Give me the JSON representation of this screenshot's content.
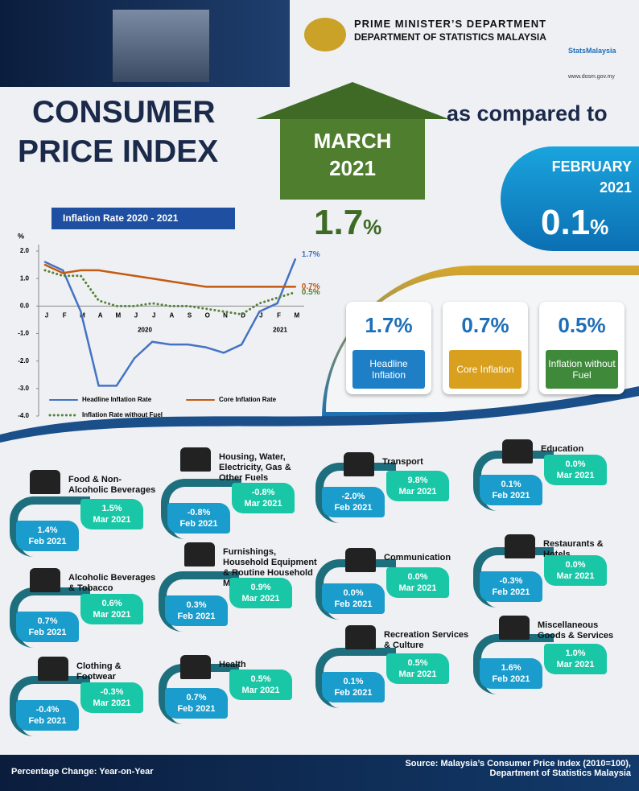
{
  "header": {
    "dept1": "PRIME MINISTER’S DEPARTMENT",
    "dept2": "DEPARTMENT OF STATISTICS MALAYSIA",
    "brand": "StatsMalaysia",
    "url": "www.dosm.gov.my",
    "title1": "CONSUMER",
    "title2": "PRICE INDEX",
    "compared": "as compared to"
  },
  "current": {
    "month": "MARCH",
    "year": "2021",
    "value": "1.7",
    "unit": "%"
  },
  "previous": {
    "month": "FEBRUARY",
    "year": "2021",
    "value": "0.1",
    "unit": "%"
  },
  "summary": [
    {
      "value": "1.7%",
      "label": "Headline Inflation"
    },
    {
      "value": "0.7%",
      "label": "Core Inflation"
    },
    {
      "value": "0.5%",
      "label": "Inflation without Fuel"
    }
  ],
  "chart_data": {
    "type": "line",
    "title": "Inflation Rate 2020 - 2021",
    "y_label": "%",
    "categories": [
      "J",
      "F",
      "M",
      "A",
      "M",
      "J",
      "J",
      "A",
      "S",
      "O",
      "N",
      "D",
      "J",
      "F",
      "M"
    ],
    "annotations": [
      "2020",
      "2021"
    ],
    "ylim": [
      -4,
      2
    ],
    "yticks": [
      {
        "value": 2,
        "label": "2.0"
      },
      {
        "value": 1,
        "label": "1.0"
      },
      {
        "value": 0,
        "label": "0.0"
      },
      {
        "value": -1,
        "label": "-1.0"
      },
      {
        "value": -2,
        "label": "-2.0"
      },
      {
        "value": -3,
        "label": "-3.0"
      },
      {
        "value": -4,
        "label": "-4.0"
      }
    ],
    "series": [
      {
        "name": "Headline Inflation Rate",
        "color": "#4472c4",
        "style": "solid",
        "values": [
          1.6,
          1.3,
          -0.2,
          -2.9,
          -2.9,
          -1.9,
          -1.3,
          -1.4,
          -1.4,
          -1.5,
          -1.7,
          -1.4,
          -0.2,
          0.1,
          1.7
        ],
        "value_labels": [
          null,
          null,
          null,
          null,
          null,
          null,
          null,
          null,
          null,
          null,
          null,
          null,
          null,
          null,
          "1.7%"
        ]
      },
      {
        "name": "Core Inflation Rate",
        "color": "#c55a11",
        "style": "solid",
        "values": [
          1.5,
          1.2,
          1.3,
          1.3,
          1.2,
          1.1,
          1.0,
          0.9,
          0.8,
          0.7,
          0.7,
          0.7,
          0.7,
          0.7,
          0.7
        ],
        "value_labels": [
          null,
          null,
          null,
          null,
          null,
          null,
          null,
          null,
          null,
          null,
          null,
          null,
          null,
          null,
          "0.7%"
        ]
      },
      {
        "name": "Inflation Rate without Fuel",
        "color": "#548235",
        "style": "dotted",
        "values": [
          1.3,
          1.1,
          1.1,
          0.2,
          0.0,
          0.0,
          0.1,
          0.0,
          0.0,
          -0.1,
          -0.2,
          -0.3,
          0.1,
          0.3,
          0.5
        ],
        "value_labels": [
          null,
          null,
          null,
          null,
          null,
          null,
          null,
          null,
          null,
          null,
          null,
          null,
          null,
          null,
          "0.5%"
        ]
      }
    ]
  },
  "period_labels": {
    "mar": "Mar 2021",
    "feb": "Feb 2021"
  },
  "groups": [
    {
      "name": "Food & Non-Alcoholic Beverages",
      "mar": "1.5%",
      "feb": "1.4%"
    },
    {
      "name": "Alcoholic Beverages & Tobacco",
      "mar": "0.6%",
      "feb": "0.7%"
    },
    {
      "name": "Clothing & Footwear",
      "mar": "-0.3%",
      "feb": "-0.4%"
    },
    {
      "name": "Housing, Water, Electricity, Gas & Other Fuels",
      "mar": "-0.8%",
      "feb": "-0.8%"
    },
    {
      "name": "Furnishings, Household Equipment & Routine Household Maintenance",
      "mar": "0.9%",
      "feb": "0.3%"
    },
    {
      "name": "Health",
      "mar": "0.5%",
      "feb": "0.7%"
    },
    {
      "name": "Transport",
      "mar": "9.8%",
      "feb": "-2.0%"
    },
    {
      "name": "Communication",
      "mar": "0.0%",
      "feb": "0.0%"
    },
    {
      "name": "Recreation Services & Culture",
      "mar": "0.5%",
      "feb": "0.1%"
    },
    {
      "name": "Education",
      "mar": "0.0%",
      "feb": "0.1%"
    },
    {
      "name": "Restaurants & Hotels",
      "mar": "0.0%",
      "feb": "-0.3%"
    },
    {
      "name": "Miscellaneous Goods & Services",
      "mar": "1.0%",
      "feb": "1.6%"
    }
  ],
  "footer": {
    "basis": "Percentage Change: Year-on-Year",
    "source": [
      "Source: Malaysia’s Consumer Price Index (2010=100),",
      "Department of Statistics Malaysia"
    ]
  }
}
